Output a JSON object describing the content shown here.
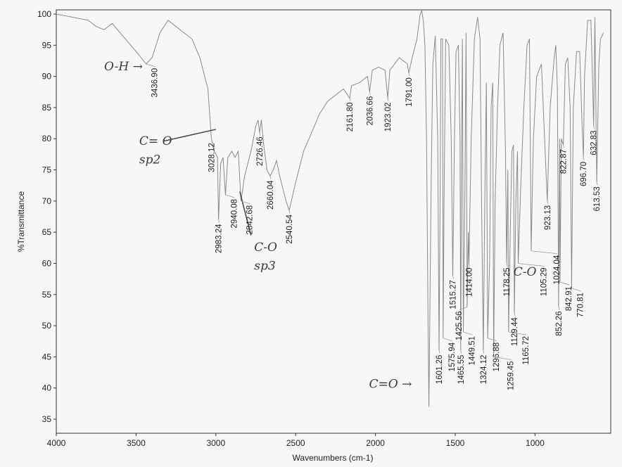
{
  "chart_data": {
    "type": "line",
    "title": "",
    "xlabel": "Wavenumbers (cm-1)",
    "ylabel": "%Transmittance",
    "xlim": [
      4000,
      550
    ],
    "ylim": [
      33,
      101
    ],
    "x_reversed": true,
    "grid": false,
    "xticks": [
      4000,
      3500,
      3000,
      2500,
      2000,
      1500,
      1000
    ],
    "yticks": [
      35,
      40,
      45,
      50,
      55,
      60,
      65,
      70,
      75,
      80,
      85,
      90,
      95,
      100
    ],
    "line_color": "#8a8a8a",
    "series": [
      {
        "x": [
          4000,
          3900,
          3800,
          3750,
          3700,
          3650,
          3600,
          3500,
          3436.9,
          3400,
          3350,
          3300,
          3250,
          3150,
          3100,
          3050,
          3028,
          3010,
          2990,
          2983.24,
          2970,
          2955,
          2940.08,
          2925,
          2900,
          2880,
          2860,
          2842.68,
          2820,
          2780,
          2750,
          2735,
          2726.46,
          2715,
          2700,
          2680,
          2660.04,
          2640,
          2620,
          2600,
          2560,
          2540.54,
          2500,
          2450,
          2400,
          2350,
          2300,
          2250,
          2200,
          2161.8,
          2150,
          2100,
          2050,
          2036.66,
          2020,
          1980,
          1940,
          1923.02,
          1910,
          1850,
          1800,
          1791,
          1770,
          1740,
          1720,
          1710,
          1700,
          1690,
          1680,
          1670,
          1665,
          1658,
          1650,
          1640,
          1625,
          1610,
          1601.26,
          1595,
          1590,
          1580,
          1575.94,
          1570,
          1560,
          1540,
          1525,
          1515.27,
          1505,
          1495,
          1480,
          1470,
          1465.55,
          1460,
          1455,
          1449.51,
          1440,
          1432,
          1425.56,
          1418,
          1414,
          1400,
          1380,
          1360,
          1345,
          1335,
          1324.12,
          1315,
          1305,
          1296.88,
          1285,
          1275,
          1265,
          1259.45,
          1250,
          1235,
          1220,
          1200,
          1185,
          1178.25,
          1170,
          1165.72,
          1155,
          1145,
          1135,
          1129.44,
          1120,
          1110,
          1105.29,
          1090,
          1070,
          1050,
          1035,
          1024.04,
          1010,
          990,
          960,
          940,
          923.13,
          905,
          880,
          870,
          860,
          852.26,
          846,
          842.91,
          835,
          822.87,
          810,
          795,
          780,
          770.81,
          760,
          740,
          720,
          705,
          696.7,
          690,
          670,
          650,
          640,
          632.83,
          625,
          613.53,
          600,
          590,
          570
        ],
        "y": [
          100,
          99.5,
          99,
          98,
          97.5,
          98.5,
          97,
          94,
          92,
          93,
          97,
          99,
          98,
          96,
          93,
          88,
          80,
          78,
          77,
          67,
          76,
          77,
          71,
          77,
          78,
          77,
          78,
          70,
          74,
          78,
          82,
          83,
          81,
          83,
          79,
          75,
          74,
          75,
          76.5,
          74,
          70,
          68.5,
          73,
          78,
          81,
          84,
          86,
          87,
          88,
          86.5,
          88.5,
          89,
          90,
          87.5,
          91,
          91.5,
          91,
          86.5,
          91,
          93,
          92,
          90.5,
          93,
          96,
          100,
          100.5,
          99,
          95,
          80,
          50,
          37,
          55,
          75,
          92,
          96.5,
          80,
          46,
          70,
          96,
          96,
          48,
          70,
          96,
          95,
          80,
          58,
          80,
          94,
          95,
          80,
          46,
          80,
          96,
          49,
          70,
          97,
          53,
          65,
          60,
          80,
          96,
          99.5,
          96,
          70,
          46,
          70,
          89,
          48,
          60,
          85,
          89,
          45,
          70,
          85,
          95,
          97,
          78,
          60,
          75,
          49,
          65,
          78,
          79,
          52,
          70,
          78,
          60,
          72,
          85,
          95,
          96,
          62,
          80,
          90,
          92,
          80,
          70,
          85,
          93,
          95,
          88,
          53,
          80,
          57,
          80,
          79,
          92,
          93,
          85,
          56,
          85,
          94,
          94,
          82,
          77,
          90,
          99,
          99,
          90,
          82,
          99.5,
          73,
          92,
          96,
          97
        ]
      }
    ],
    "peaks": [
      {
        "x": 3436.9,
        "y": 92,
        "label": "3436.90"
      },
      {
        "x": 3028.12,
        "y": 80,
        "label": "3028.12"
      },
      {
        "x": 2983.24,
        "y": 67,
        "label": "2983.24"
      },
      {
        "x": 2940.08,
        "y": 71,
        "label": "2940.08"
      },
      {
        "x": 2842.68,
        "y": 70,
        "label": "2842.68"
      },
      {
        "x": 2726.46,
        "y": 81,
        "label": "2726.46"
      },
      {
        "x": 2660.04,
        "y": 74,
        "label": "2660.04"
      },
      {
        "x": 2540.54,
        "y": 68.5,
        "label": "2540.54"
      },
      {
        "x": 2161.8,
        "y": 86.5,
        "label": "2161.80"
      },
      {
        "x": 2036.66,
        "y": 87.5,
        "label": "2036.66"
      },
      {
        "x": 1923.02,
        "y": 86.5,
        "label": "1923.02"
      },
      {
        "x": 1791.0,
        "y": 90.5,
        "label": "1791.00"
      },
      {
        "x": 1601.26,
        "y": 46,
        "label": "1601.26"
      },
      {
        "x": 1575.94,
        "y": 48,
        "label": "1575.94"
      },
      {
        "x": 1515.27,
        "y": 58,
        "label": "1515.27"
      },
      {
        "x": 1465.55,
        "y": 46,
        "label": "1465.55"
      },
      {
        "x": 1449.51,
        "y": 49,
        "label": "1449.51"
      },
      {
        "x": 1425.56,
        "y": 53,
        "label": "1425.56"
      },
      {
        "x": 1414.0,
        "y": 60,
        "label": "1414.00"
      },
      {
        "x": 1324.12,
        "y": 46,
        "label": "1324.12"
      },
      {
        "x": 1296.88,
        "y": 48,
        "label": "1296.88"
      },
      {
        "x": 1259.45,
        "y": 45,
        "label": "1259.45"
      },
      {
        "x": 1178.25,
        "y": 60,
        "label": "1178.25"
      },
      {
        "x": 1165.72,
        "y": 49,
        "label": "1165.72"
      },
      {
        "x": 1129.44,
        "y": 52,
        "label": "1129.44"
      },
      {
        "x": 1105.29,
        "y": 60,
        "label": "1105.29"
      },
      {
        "x": 1024.04,
        "y": 62,
        "label": "1024.04"
      },
      {
        "x": 923.13,
        "y": 70,
        "label": "923.13"
      },
      {
        "x": 852.26,
        "y": 53,
        "label": "852.26"
      },
      {
        "x": 842.91,
        "y": 57,
        "label": "842.91"
      },
      {
        "x": 822.87,
        "y": 79,
        "label": "822.87"
      },
      {
        "x": 770.81,
        "y": 56,
        "label": "770.81"
      },
      {
        "x": 696.7,
        "y": 77,
        "label": "696.70"
      },
      {
        "x": 632.83,
        "y": 82,
        "label": "632.83"
      },
      {
        "x": 613.53,
        "y": 73,
        "label": "613.53"
      }
    ],
    "annotations": [
      {
        "text": "O-H →",
        "x": 3700,
        "y": 91
      },
      {
        "text": "C= O",
        "x": 3480,
        "y": 79
      },
      {
        "text": "sp2",
        "x": 3480,
        "y": 76
      },
      {
        "text": "C-O",
        "x": 2760,
        "y": 62
      },
      {
        "text": "sp3",
        "x": 2760,
        "y": 59
      },
      {
        "text": "C-O",
        "x": 1135,
        "y": 58
      },
      {
        "text": "C=O →",
        "x": 2040,
        "y": 40
      }
    ]
  }
}
